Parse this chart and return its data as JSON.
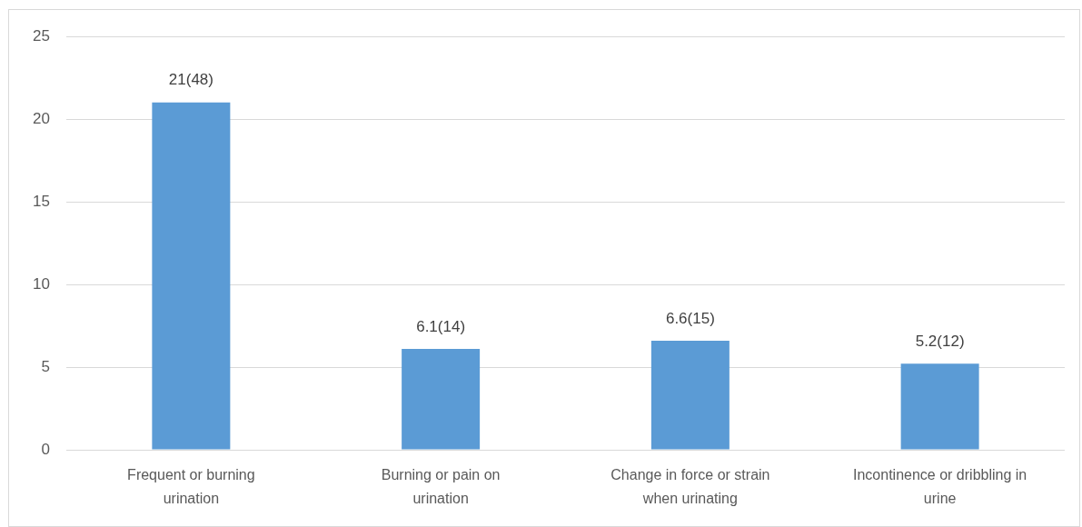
{
  "chart_data": {
    "type": "bar",
    "categories": [
      "Frequent or burning urination",
      "Burning or pain on urination",
      "Change in force or strain when urinating",
      "Incontinence or dribbling in urine"
    ],
    "values": [
      21,
      6.1,
      6.6,
      5.2
    ],
    "value_labels": [
      "21(48)",
      "6.1(14)",
      "6.6(15)",
      "5.2(12)"
    ],
    "color": "#5b9bd5",
    "ylim": [
      0,
      25
    ],
    "yticks": [
      0,
      5,
      10,
      15,
      20,
      25
    ],
    "grid": "y"
  }
}
